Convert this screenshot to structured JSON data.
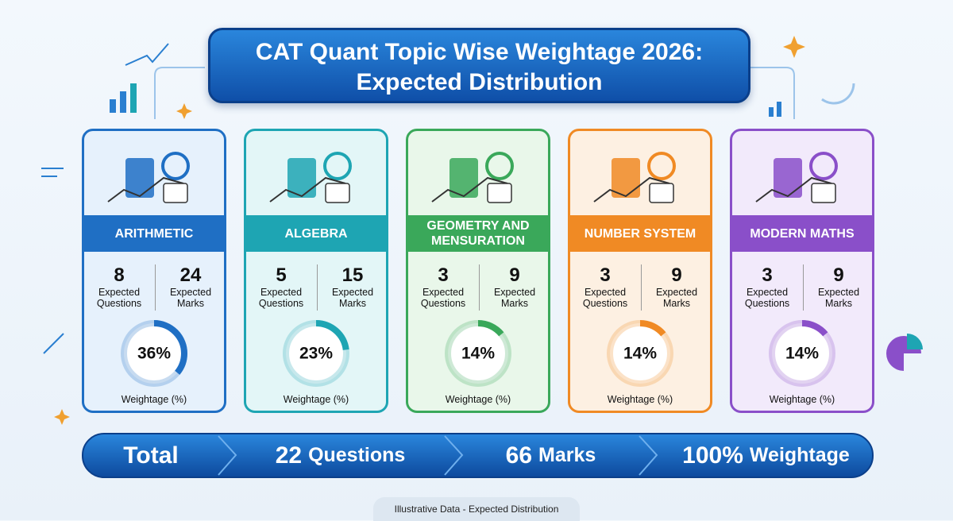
{
  "title_line1": "CAT Quant Topic Wise Weightage 2026:",
  "title_line2": "Expected Distribution",
  "labels": {
    "questions": "Expected Questions",
    "marks": "Expected Marks",
    "weightage": "Weightage (%)"
  },
  "cards": [
    {
      "name": "ARITHMETIC",
      "questions": "8",
      "marks": "24",
      "weightage": {
        "value": 36,
        "label": "36%"
      },
      "color": "#1f6fc4",
      "bg": "#e6f1fc"
    },
    {
      "name": "ALGEBRA",
      "questions": "5",
      "marks": "15",
      "weightage": {
        "value": 23,
        "label": "23%"
      },
      "color": "#1ea5b3",
      "bg": "#e3f6f7"
    },
    {
      "name": "GEOMETRY AND MENSURATION",
      "questions": "3",
      "marks": "9",
      "weightage": {
        "value": 14,
        "label": "14%"
      },
      "color": "#3aa85a",
      "bg": "#e9f7ea"
    },
    {
      "name": "NUMBER SYSTEM",
      "questions": "3",
      "marks": "9",
      "weightage": {
        "value": 14,
        "label": "14%"
      },
      "color": "#f08a24",
      "bg": "#fdf0e2"
    },
    {
      "name": "MODERN MATHS",
      "questions": "3",
      "marks": "9",
      "weightage": {
        "value": 14,
        "label": "14%"
      },
      "color": "#8a4fc9",
      "bg": "#f2eafb"
    }
  ],
  "total": {
    "label": "Total",
    "items": [
      {
        "number": "22",
        "unit": "Questions"
      },
      {
        "number": "66",
        "unit": "Marks"
      },
      {
        "number": "100%",
        "unit": "Weightage"
      }
    ]
  },
  "footer": "Illustrative Data - Expected Distribution"
}
